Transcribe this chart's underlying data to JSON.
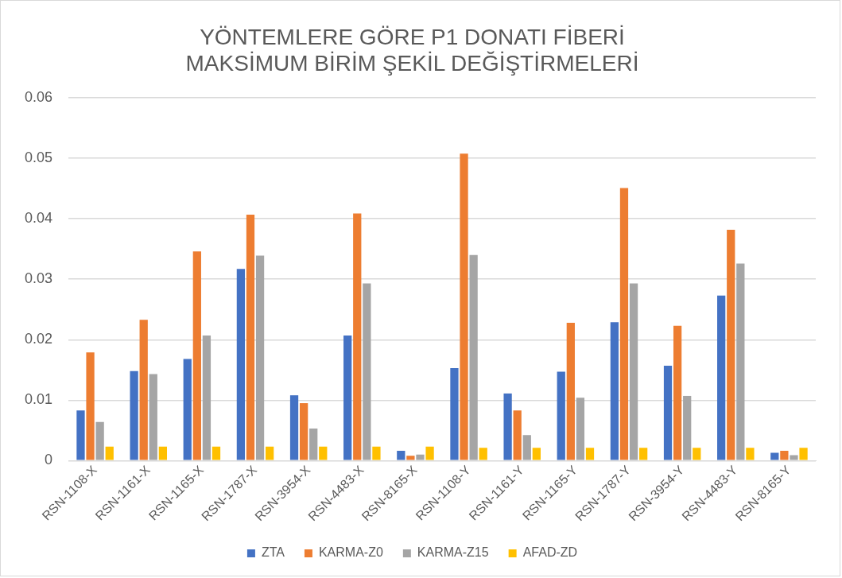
{
  "chart_data": {
    "type": "bar",
    "title": [
      "YÖNTEMLERE GÖRE P1 DONATI FİBERİ",
      "MAKSİMUM BİRİM ŞEKİL DEĞİŞTİRMELERİ"
    ],
    "categories": [
      "RSN-1108-X",
      "RSN-1161-X",
      "RSN-1165-X",
      "RSN-1787-X",
      "RSN-3954-X",
      "RSN-4483-X",
      "RSN-8165-X",
      "RSN-1108-Y",
      "RSN-1161-Y",
      "RSN-1165-Y",
      "RSN-1787-Y",
      "RSN-3954-Y",
      "RSN-4483-Y",
      "RSN-8165-Y"
    ],
    "series": [
      {
        "name": "ZTA",
        "color": "#4472c4",
        "values": [
          0.0083,
          0.0148,
          0.0168,
          0.0317,
          0.0108,
          0.0207,
          0.0016,
          0.0153,
          0.0111,
          0.0147,
          0.0229,
          0.0157,
          0.0273,
          0.0013
        ]
      },
      {
        "name": "KARMA-Z0",
        "color": "#ed7d31",
        "values": [
          0.0179,
          0.0233,
          0.0346,
          0.0407,
          0.0095,
          0.0409,
          0.0008,
          0.0508,
          0.0083,
          0.0228,
          0.0451,
          0.0223,
          0.0382,
          0.0016
        ]
      },
      {
        "name": "KARMA-Z15",
        "color": "#a5a5a5",
        "values": [
          0.0064,
          0.0143,
          0.0207,
          0.0339,
          0.0053,
          0.0293,
          0.001,
          0.034,
          0.0042,
          0.0104,
          0.0293,
          0.0107,
          0.0326,
          0.0009
        ]
      },
      {
        "name": "AFAD-ZD",
        "color": "#ffc000",
        "values": [
          0.0023,
          0.0023,
          0.0023,
          0.0023,
          0.0023,
          0.0023,
          0.0023,
          0.0021,
          0.0021,
          0.0021,
          0.0021,
          0.0021,
          0.0021,
          0.0021
        ]
      }
    ],
    "ylim": [
      0,
      0.06
    ],
    "yticks": [
      0,
      0.01,
      0.02,
      0.03,
      0.04,
      0.05,
      0.06
    ],
    "grid": "y",
    "legend": "bottom"
  }
}
